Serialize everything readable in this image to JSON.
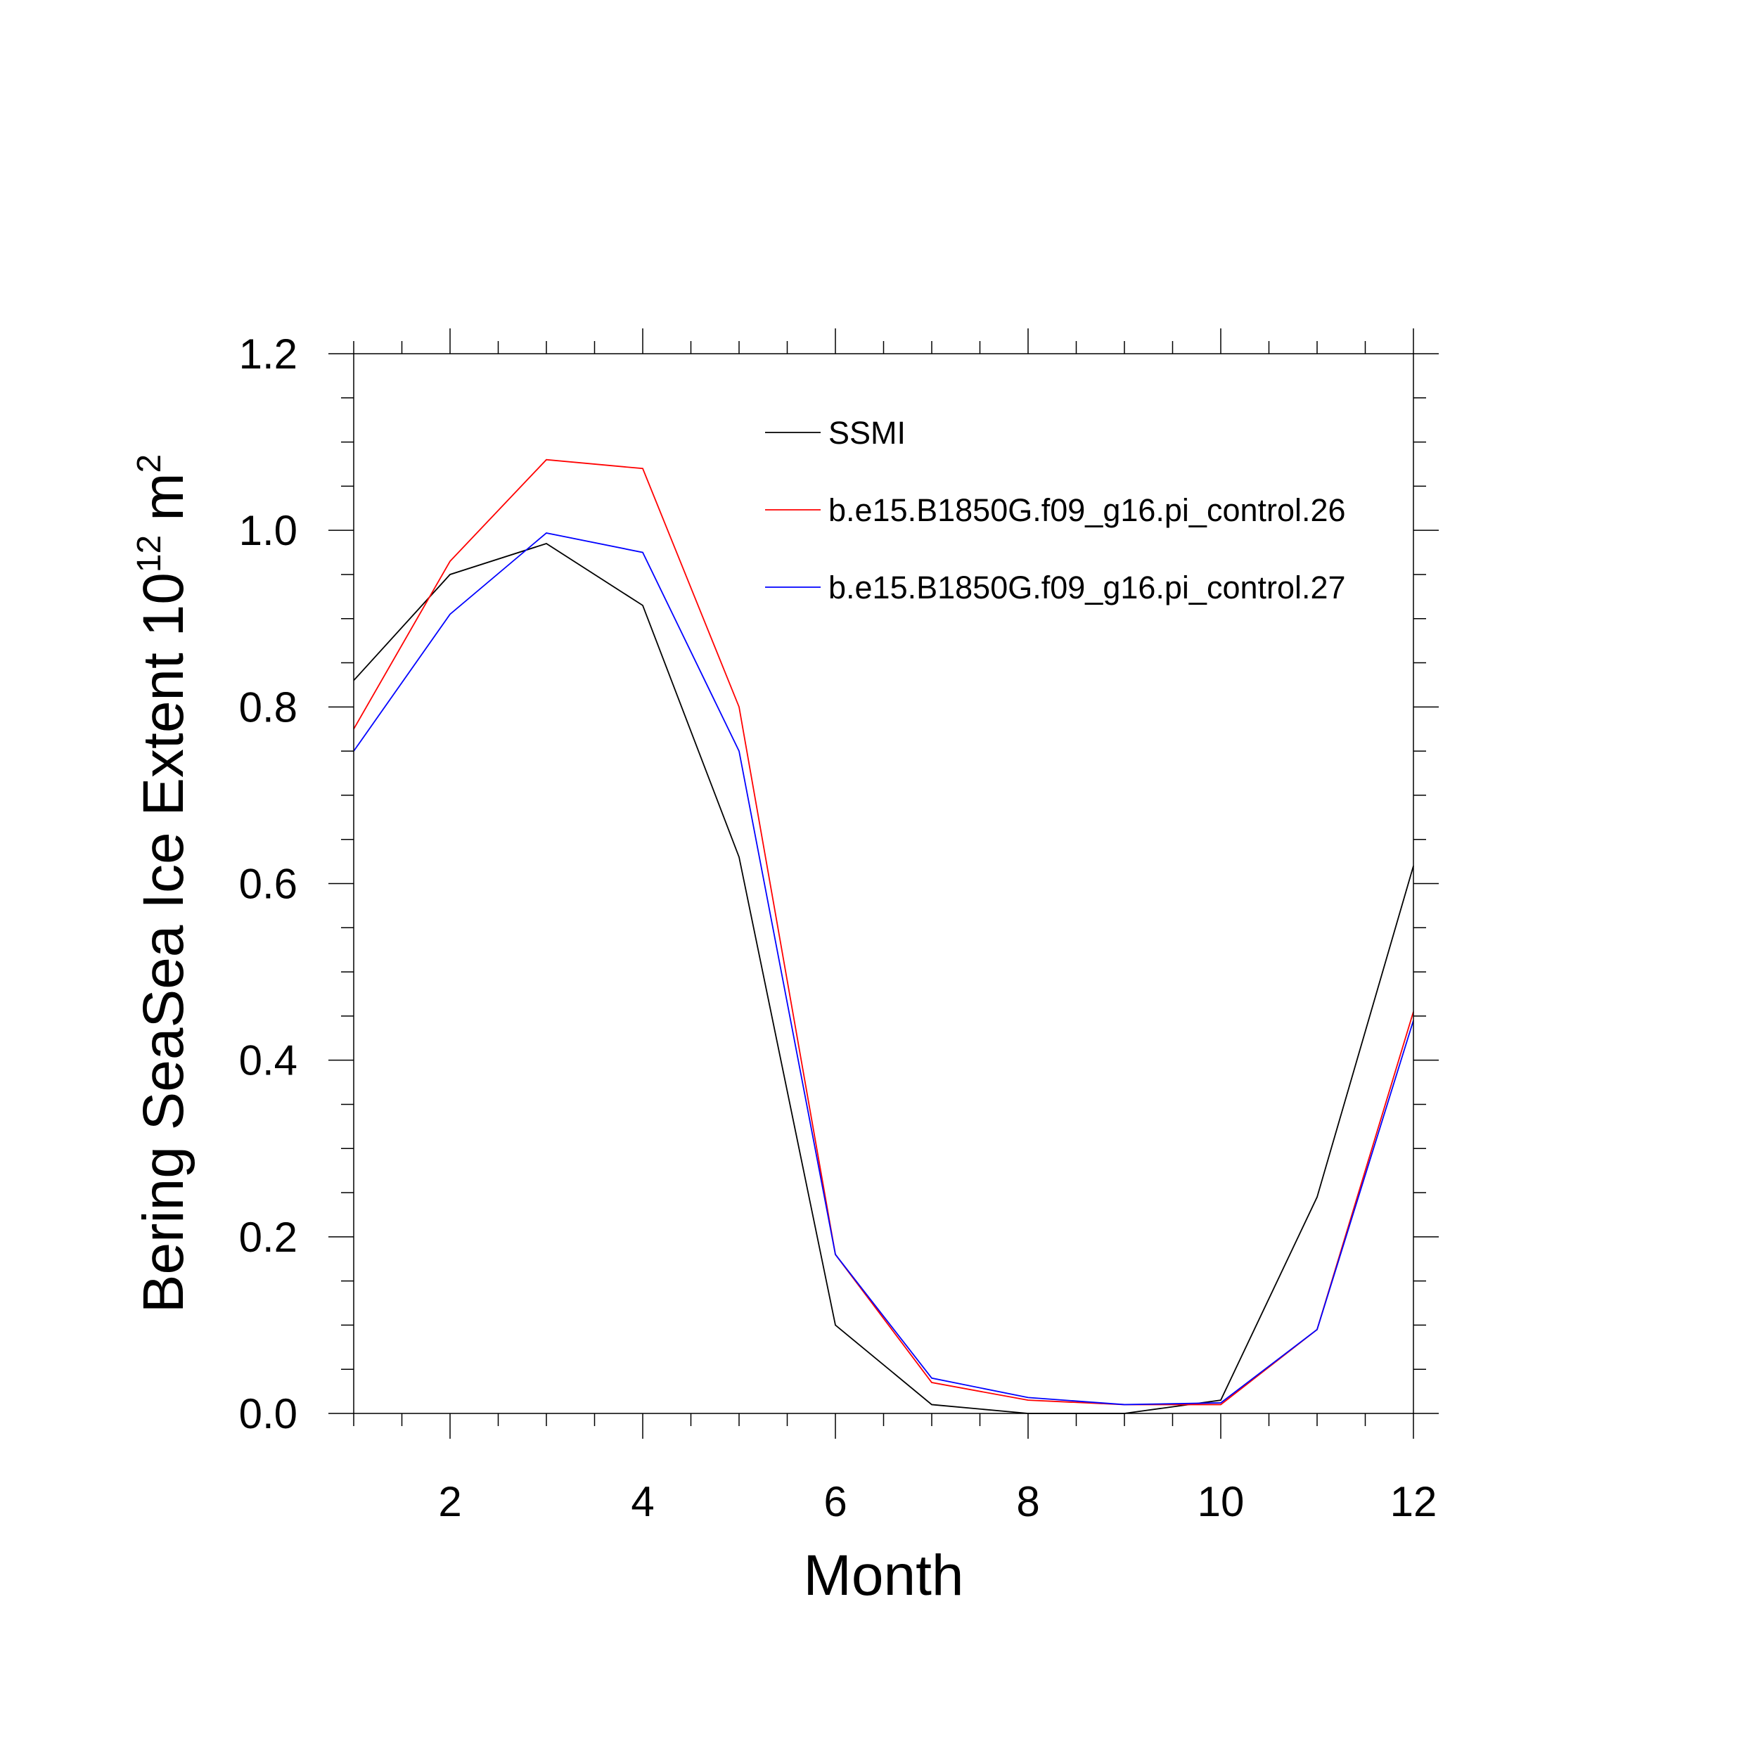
{
  "chart_data": {
    "type": "line",
    "title": "",
    "xlabel": "Month",
    "ylabel_main": "Bering SeaSea Ice Extent 10",
    "ylabel_sup": "12",
    "ylabel_unit": "m",
    "ylabel_unit_sup": "2",
    "xlim": [
      1,
      12
    ],
    "ylim": [
      0,
      1.2
    ],
    "xticks": [
      2,
      4,
      6,
      8,
      10,
      12
    ],
    "xtick_labels": [
      "2",
      "4",
      "6",
      "8",
      "10",
      "12"
    ],
    "yticks": [
      0,
      0.2,
      0.4,
      0.6,
      0.8,
      1.0,
      1.2
    ],
    "ytick_labels": [
      "0.0",
      "0.2",
      "0.4",
      "0.6",
      "0.8",
      "1.0",
      "1.2"
    ],
    "grid": false,
    "legend_position": "top-right",
    "x": [
      1,
      2,
      3,
      4,
      5,
      6,
      7,
      8,
      9,
      10,
      11,
      12
    ],
    "series": [
      {
        "name": "SSMI",
        "color": "#000000",
        "values": [
          0.83,
          0.95,
          0.985,
          0.915,
          0.63,
          0.1,
          0.01,
          0.0,
          0.0,
          0.015,
          0.245,
          0.62
        ]
      },
      {
        "name": "b.e15.B1850G.f09_g16.pi_control.26",
        "color": "#ff0000",
        "values": [
          0.775,
          0.965,
          1.08,
          1.07,
          0.8,
          0.18,
          0.035,
          0.015,
          0.01,
          0.01,
          0.095,
          0.455
        ]
      },
      {
        "name": "b.e15.B1850G.f09_g16.pi_control.27",
        "color": "#0000ff",
        "values": [
          0.75,
          0.905,
          0.997,
          0.975,
          0.75,
          0.18,
          0.04,
          0.018,
          0.01,
          0.012,
          0.095,
          0.445
        ]
      }
    ]
  }
}
